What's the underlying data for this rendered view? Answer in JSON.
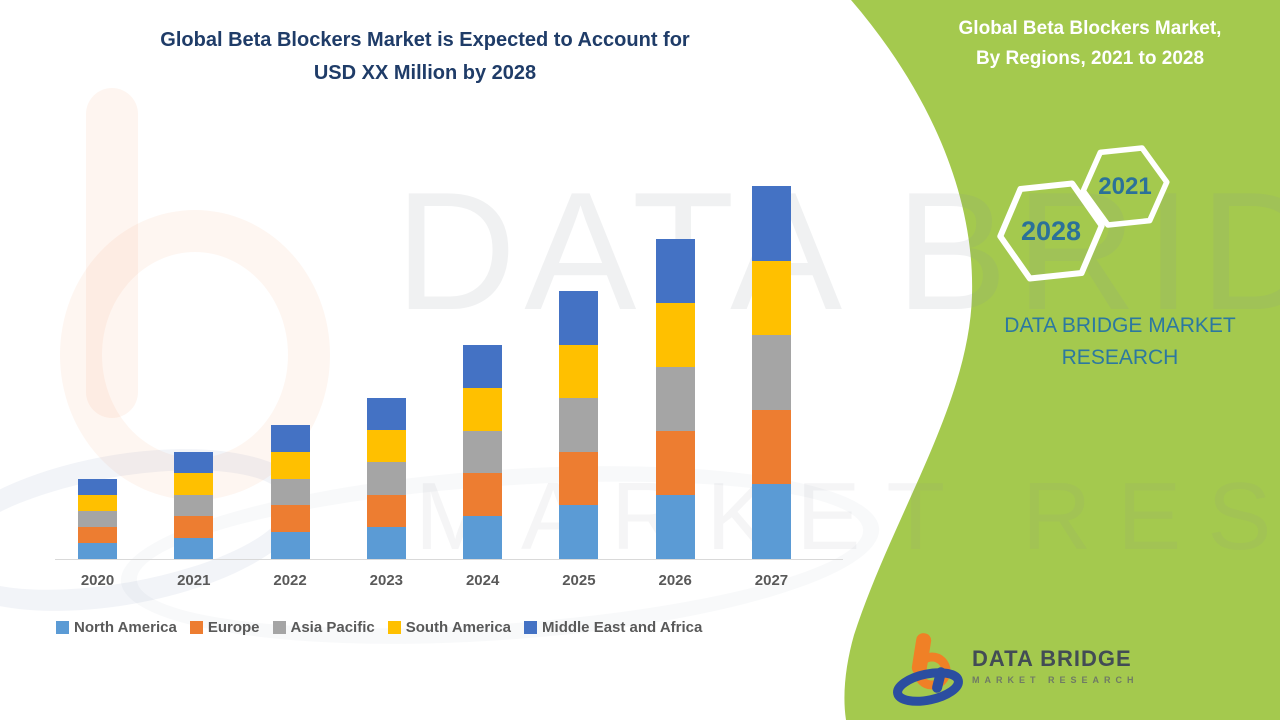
{
  "chart_title": {
    "line1": "Global Beta Blockers Market is Expected to Account for",
    "line2": "USD XX Million by 2028"
  },
  "side_panel": {
    "heading_line1": "Global Beta Blockers Market,",
    "heading_line2": "By Regions, 2021 to 2028",
    "hexagon_back_label": "2021",
    "hexagon_front_label": "2028",
    "brand_line1": "DATA BRIDGE MARKET",
    "brand_line2": "RESEARCH",
    "bg_color": "#a4c94e",
    "heading_color": "#ffffff",
    "accent_text_color": "#2b7199"
  },
  "watermark": {
    "line1": "DATA BRIDGE",
    "line2": "MARKET RESEARCH"
  },
  "logo": {
    "name": "DATA BRIDGE",
    "subtitle": "MARKET RESEARCH",
    "orange": "#f08026",
    "blue": "#2b4ea0"
  },
  "chart_data": {
    "type": "bar",
    "stacked": true,
    "title": "Global Beta Blockers Market is Expected to Account for USD XX Million by 2028",
    "categories": [
      "2020",
      "2021",
      "2022",
      "2023",
      "2024",
      "2025",
      "2026",
      "2027"
    ],
    "series": [
      {
        "name": "North America",
        "color": "#5B9BD5",
        "values": [
          16,
          21.4,
          26.8,
          32.2,
          42.8,
          53.6,
          64,
          74.6
        ]
      },
      {
        "name": "Europe",
        "color": "#ED7D31",
        "values": [
          16,
          21.4,
          26.8,
          32.2,
          42.8,
          53.6,
          64,
          74.6
        ]
      },
      {
        "name": "Asia Pacific",
        "color": "#A5A5A5",
        "values": [
          16,
          21.4,
          26.8,
          32.2,
          42.8,
          53.6,
          64,
          74.6
        ]
      },
      {
        "name": "South America",
        "color": "#FFC000",
        "values": [
          16,
          21.4,
          26.8,
          32.2,
          42.8,
          53.6,
          64,
          74.6
        ]
      },
      {
        "name": "Middle East and Africa",
        "color": "#4472C4",
        "values": [
          16,
          21.4,
          26.8,
          32.2,
          42.8,
          53.6,
          64,
          74.6
        ]
      }
    ],
    "stack_totals": [
      80,
      107,
      134,
      161,
      214,
      268,
      320,
      373
    ],
    "xlabel": "",
    "ylabel": "",
    "value_axis_visible": false,
    "gridlines": false,
    "legend_position": "bottom",
    "legend_order": [
      "North America",
      "Europe",
      "Asia Pacific",
      "South America",
      "Middle East and Africa"
    ]
  }
}
